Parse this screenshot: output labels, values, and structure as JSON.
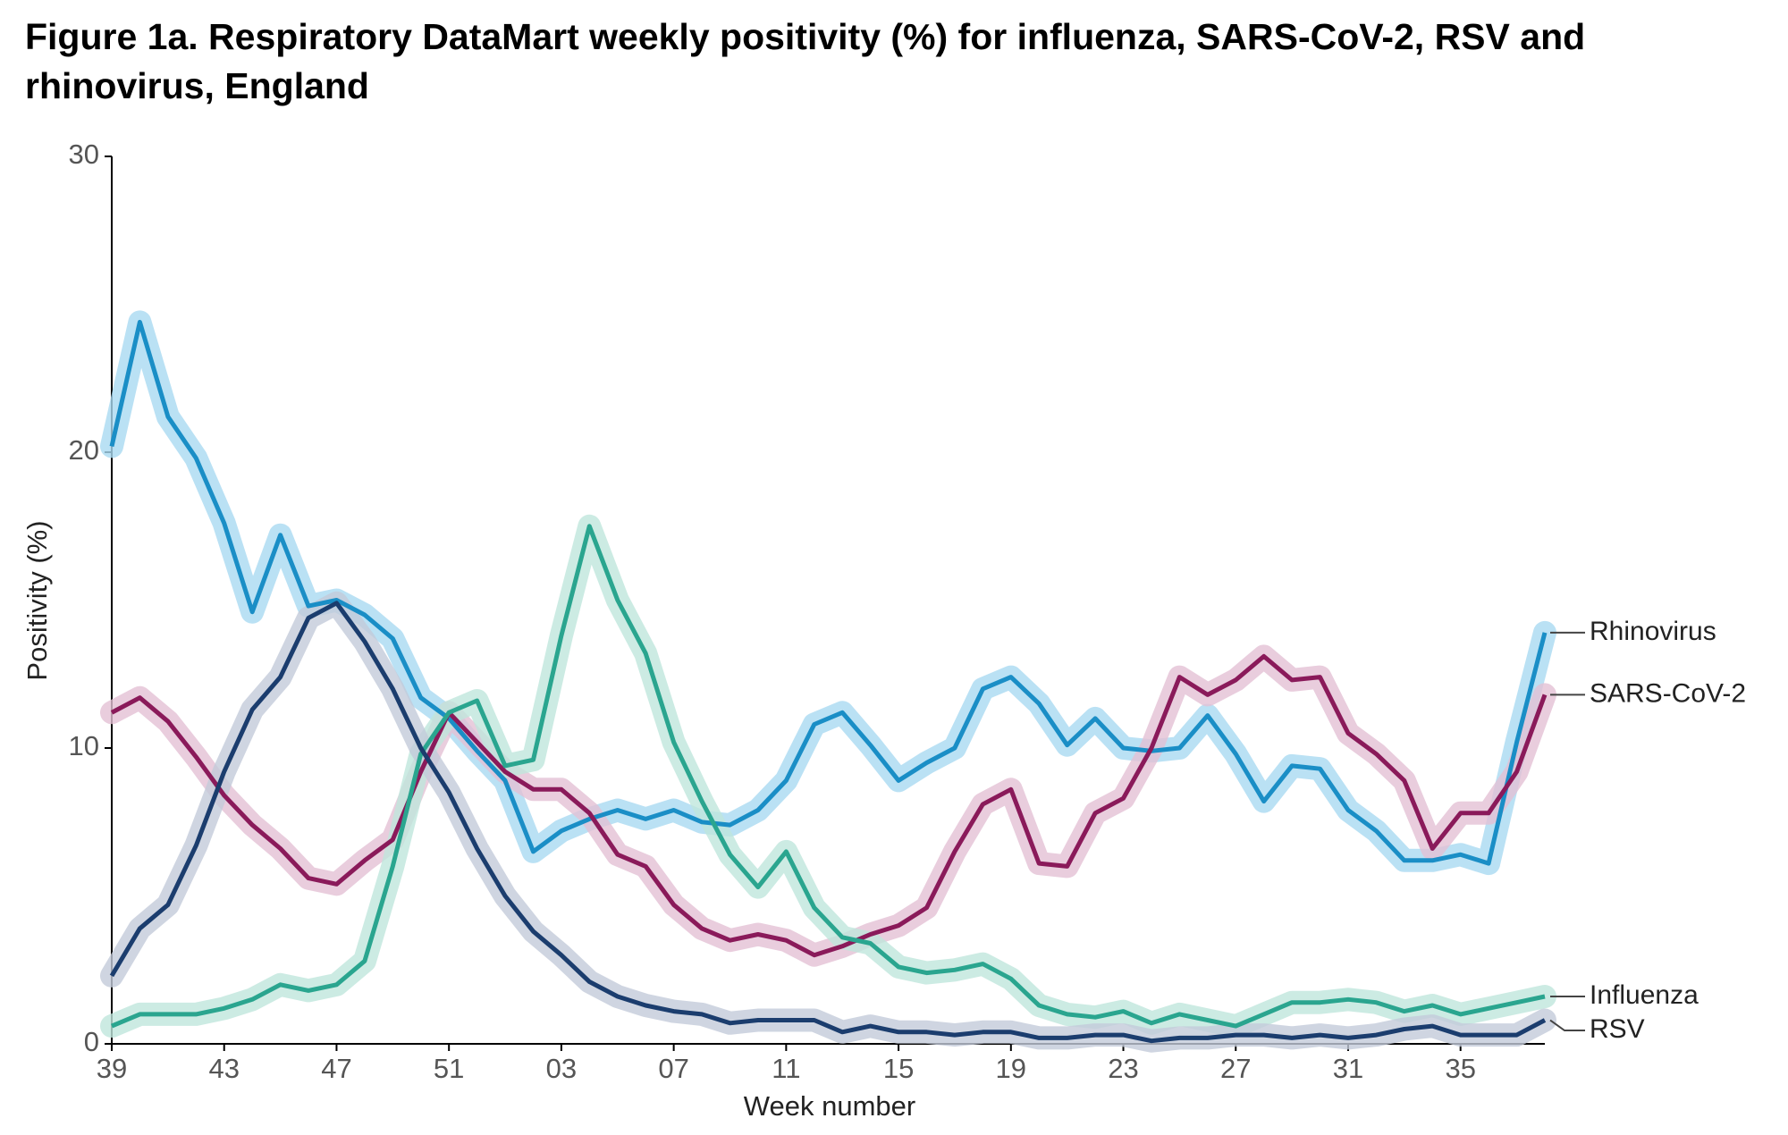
{
  "chart_data": {
    "type": "line",
    "title": "Figure 1a. Respiratory DataMart weekly positivity (%) for influenza, SARS-CoV-2, RSV and rhinovirus, England",
    "x_label": "Week number",
    "y_label": "Positivity (%)",
    "categories": [
      "39",
      null,
      null,
      null,
      "43",
      null,
      null,
      null,
      "47",
      null,
      null,
      null,
      "51",
      null,
      null,
      null,
      "03",
      null,
      null,
      null,
      "07",
      null,
      null,
      null,
      "11",
      null,
      null,
      null,
      "15",
      null,
      null,
      null,
      "19",
      null,
      null,
      null,
      "23",
      null,
      null,
      null,
      "27",
      null,
      null,
      null,
      "31",
      null,
      null,
      null,
      "35",
      null,
      null,
      null
    ],
    "ylim": [
      0,
      30
    ],
    "yticks": [
      0,
      10,
      20,
      30
    ],
    "grid": false,
    "series": [
      {
        "name": "Rhinovirus",
        "color": "#1a8ec6",
        "band_color": "#a9d9f1",
        "values": [
          20.2,
          24.4,
          21.2,
          19.8,
          17.6,
          14.6,
          17.2,
          14.8,
          15.0,
          14.5,
          13.7,
          11.7,
          11.0,
          9.9,
          8.9,
          6.5,
          7.2,
          7.6,
          7.9,
          7.6,
          7.9,
          7.5,
          7.4,
          7.9,
          8.9,
          10.8,
          11.2,
          10.1,
          8.9,
          9.5,
          10.0,
          12.0,
          12.4,
          11.5,
          10.1,
          11.0,
          10.0,
          9.9,
          10.0,
          11.1,
          9.8,
          8.2,
          9.4,
          9.3,
          7.9,
          7.2,
          6.2,
          6.2,
          6.4,
          6.1,
          10.2,
          13.9
        ]
      },
      {
        "name": "SARS-CoV-2",
        "color": "#8a1a5a",
        "band_color": "#e3c1d4",
        "values": [
          11.2,
          11.7,
          10.9,
          9.7,
          8.4,
          7.4,
          6.6,
          5.6,
          5.4,
          6.2,
          6.9,
          9.2,
          11.2,
          10.2,
          9.2,
          8.6,
          8.6,
          7.8,
          6.4,
          6.0,
          4.7,
          3.9,
          3.5,
          3.7,
          3.5,
          3.0,
          3.3,
          3.7,
          4.0,
          4.6,
          6.5,
          8.1,
          8.6,
          6.1,
          6.0,
          7.8,
          8.3,
          10.0,
          12.4,
          11.8,
          12.3,
          13.1,
          12.3,
          12.4,
          10.5,
          9.8,
          8.9,
          6.6,
          7.8,
          7.8,
          9.2,
          11.8
        ]
      },
      {
        "name": "Influenza",
        "color": "#2aa58f",
        "band_color": "#bfe6dc",
        "values": [
          0.6,
          1.0,
          1.0,
          1.0,
          1.2,
          1.5,
          2.0,
          1.8,
          2.0,
          2.8,
          6.0,
          9.8,
          11.2,
          11.6,
          9.4,
          9.6,
          13.8,
          17.5,
          15.0,
          13.2,
          10.2,
          8.2,
          6.4,
          5.3,
          6.5,
          4.6,
          3.6,
          3.4,
          2.6,
          2.4,
          2.5,
          2.7,
          2.2,
          1.3,
          1.0,
          0.9,
          1.1,
          0.7,
          1.0,
          0.8,
          0.6,
          1.0,
          1.4,
          1.4,
          1.5,
          1.4,
          1.1,
          1.3,
          1.0,
          1.2,
          1.4,
          1.6
        ]
      },
      {
        "name": "RSV",
        "color": "#1b3d6e",
        "band_color": "#c3cbd9",
        "values": [
          2.3,
          3.9,
          4.7,
          6.7,
          9.2,
          11.3,
          12.4,
          14.4,
          14.9,
          13.6,
          12.0,
          10.0,
          8.5,
          6.6,
          5.0,
          3.8,
          3.0,
          2.1,
          1.6,
          1.3,
          1.1,
          1.0,
          0.7,
          0.8,
          0.8,
          0.8,
          0.4,
          0.6,
          0.4,
          0.4,
          0.3,
          0.4,
          0.4,
          0.2,
          0.2,
          0.3,
          0.3,
          0.1,
          0.2,
          0.2,
          0.3,
          0.3,
          0.2,
          0.3,
          0.2,
          0.3,
          0.5,
          0.6,
          0.3,
          0.3,
          0.3,
          0.8
        ]
      }
    ]
  }
}
